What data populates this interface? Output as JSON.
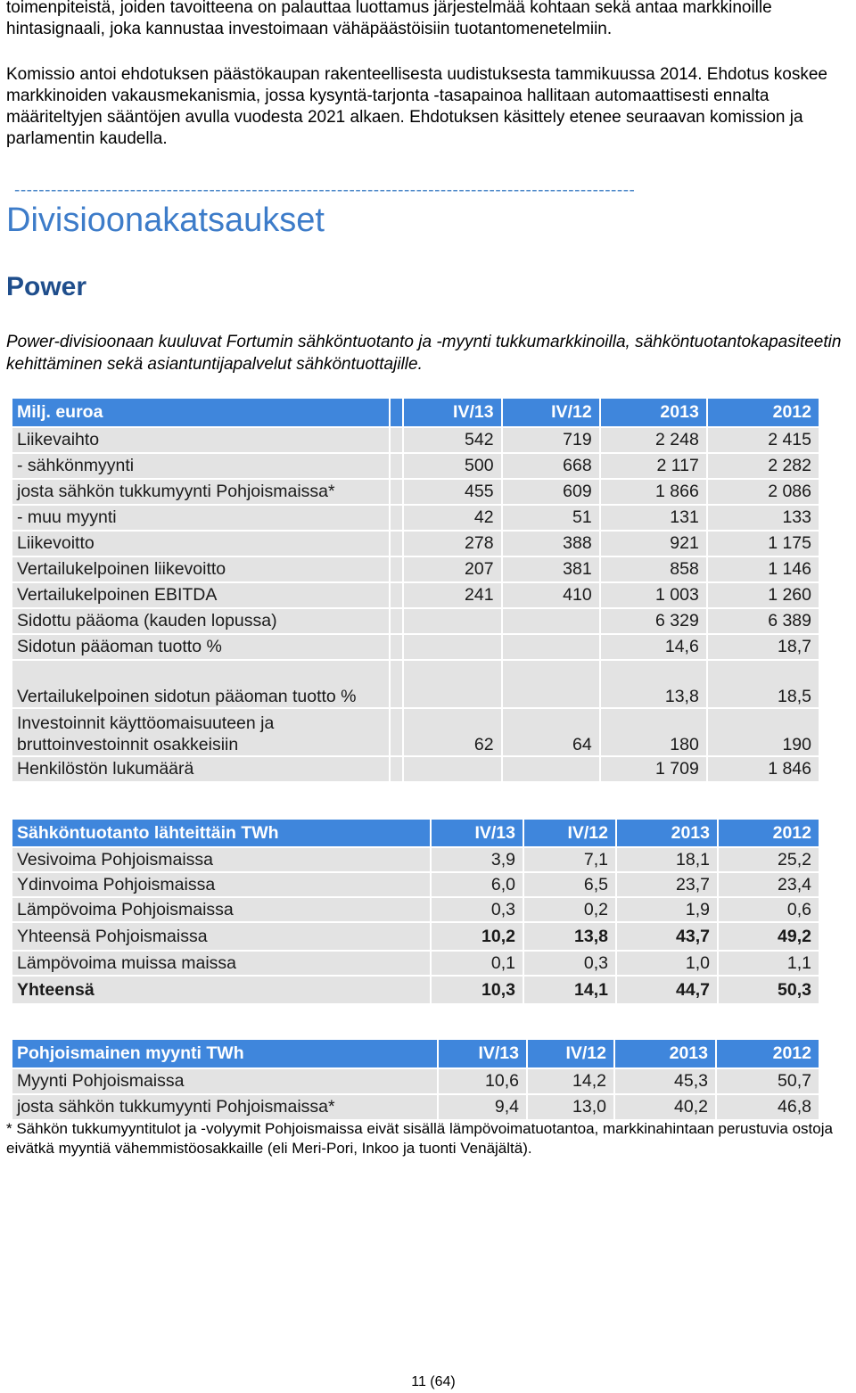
{
  "paragraphs": {
    "p1": "toimenpiteistä, joiden tavoitteena on palauttaa luottamus järjestelmää kohtaan sekä antaa markkinoille hintasignaali, joka kannustaa investoimaan vähäpäästöisiin tuotantomenetelmiin.",
    "p2": "Komissio antoi ehdotuksen päästökaupan rakenteellisesta uudistuksesta tammikuussa 2014. Ehdotus koskee markkinoiden vakausmekanismia, jossa kysyntä-tarjonta -tasapainoa hallitaan automaattisesti ennalta määriteltyjen sääntöjen avulla vuodesta 2021 alkaen. Ehdotuksen käsittely etenee seuraavan komission ja parlamentin kaudella."
  },
  "separator": "------------------------------------------------------------------------------------------------------",
  "section_title": "Divisioonakatsaukset",
  "division_title": "Power",
  "intro": "Power-divisioonaan kuuluvat Fortumin sähköntuotanto ja -myynti tukkumarkkinoilla, sähköntuotantokapasiteetin kehittäminen sekä asiantuntijapalvelut sähköntuottajille.",
  "table1": {
    "header": [
      "Milj. euroa",
      "IV/13",
      "IV/12",
      "2013",
      "2012"
    ],
    "rows": [
      [
        "Liikevaihto",
        "542",
        "719",
        "2 248",
        "2 415"
      ],
      [
        "- sähkönmyynti",
        "500",
        "668",
        "2 117",
        "2 282"
      ],
      [
        "josta sähkön tukkumyynti Pohjoismaissa*",
        "455",
        "609",
        "1 866",
        "2 086"
      ],
      [
        "- muu myynti",
        "42",
        "51",
        "131",
        "133"
      ],
      [
        "Liikevoitto",
        "278",
        "388",
        "921",
        "1 175"
      ],
      [
        "Vertailukelpoinen liikevoitto",
        "207",
        "381",
        "858",
        "1 146"
      ],
      [
        "Vertailukelpoinen EBITDA",
        "241",
        "410",
        "1 003",
        "1 260"
      ],
      [
        "Sidottu pääoma (kauden lopussa)",
        "",
        "",
        "6 329",
        "6 389"
      ],
      [
        "Sidotun pääoman tuotto  %",
        "",
        "",
        "14,6",
        "18,7"
      ],
      [
        "Vertailukelpoinen sidotun pääoman tuotto %",
        "",
        "",
        "13,8",
        "18,5"
      ],
      [
        "Investoinnit käyttöomaisuuteen ja bruttoinvestoinnit osakkeisiin",
        "62",
        "64",
        "180",
        "190"
      ],
      [
        "Henkilöstön lukumäärä",
        "",
        "",
        "1 709",
        "1 846"
      ]
    ]
  },
  "table2": {
    "header": [
      "Sähköntuotanto lähteittäin  TWh",
      "IV/13",
      "IV/12",
      "2013",
      "2012"
    ],
    "rows": [
      [
        "Vesivoima  Pohjoismaissa",
        "3,9",
        "7,1",
        "18,1",
        "25,2"
      ],
      [
        "Ydinvoima  Pohjoismaissa",
        "6,0",
        "6,5",
        "23,7",
        "23,4"
      ],
      [
        "Lämpövoima  Pohjoismaissa",
        "0,3",
        "0,2",
        "1,9",
        "0,6"
      ],
      [
        "Yhteensä Pohjoismaissa",
        "10,2",
        "13,8",
        "43,7",
        "49,2"
      ],
      [
        "Lämpövoima muissa maissa",
        "0,1",
        "0,3",
        "1,0",
        "1,1"
      ],
      [
        "Yhteensä",
        "10,3",
        "14,1",
        "44,7",
        "50,3"
      ]
    ]
  },
  "table3": {
    "header": [
      "Pohjoismainen myynti  TWh",
      "IV/13",
      "IV/12",
      "2013",
      "2012"
    ],
    "rows": [
      [
        "Myynti Pohjoismaissa",
        "10,6",
        "14,2",
        "45,3",
        "50,7"
      ],
      [
        "josta sähkön tukkumyynti Pohjoismaissa*",
        "9,4",
        "13,0",
        "40,2",
        "46,8"
      ]
    ]
  },
  "footnote": "* Sähkön tukkumyyntitulot ja -volyymit Pohjoismaissa eivät sisällä lämpövoimatuotantoa, markkinahintaan perustuvia ostoja eivätkä myyntiä vähemmistöosakkaille (eli Meri-Pori, Inkoo ja tuonti Venäjältä).",
  "page_number": "11 (64)"
}
